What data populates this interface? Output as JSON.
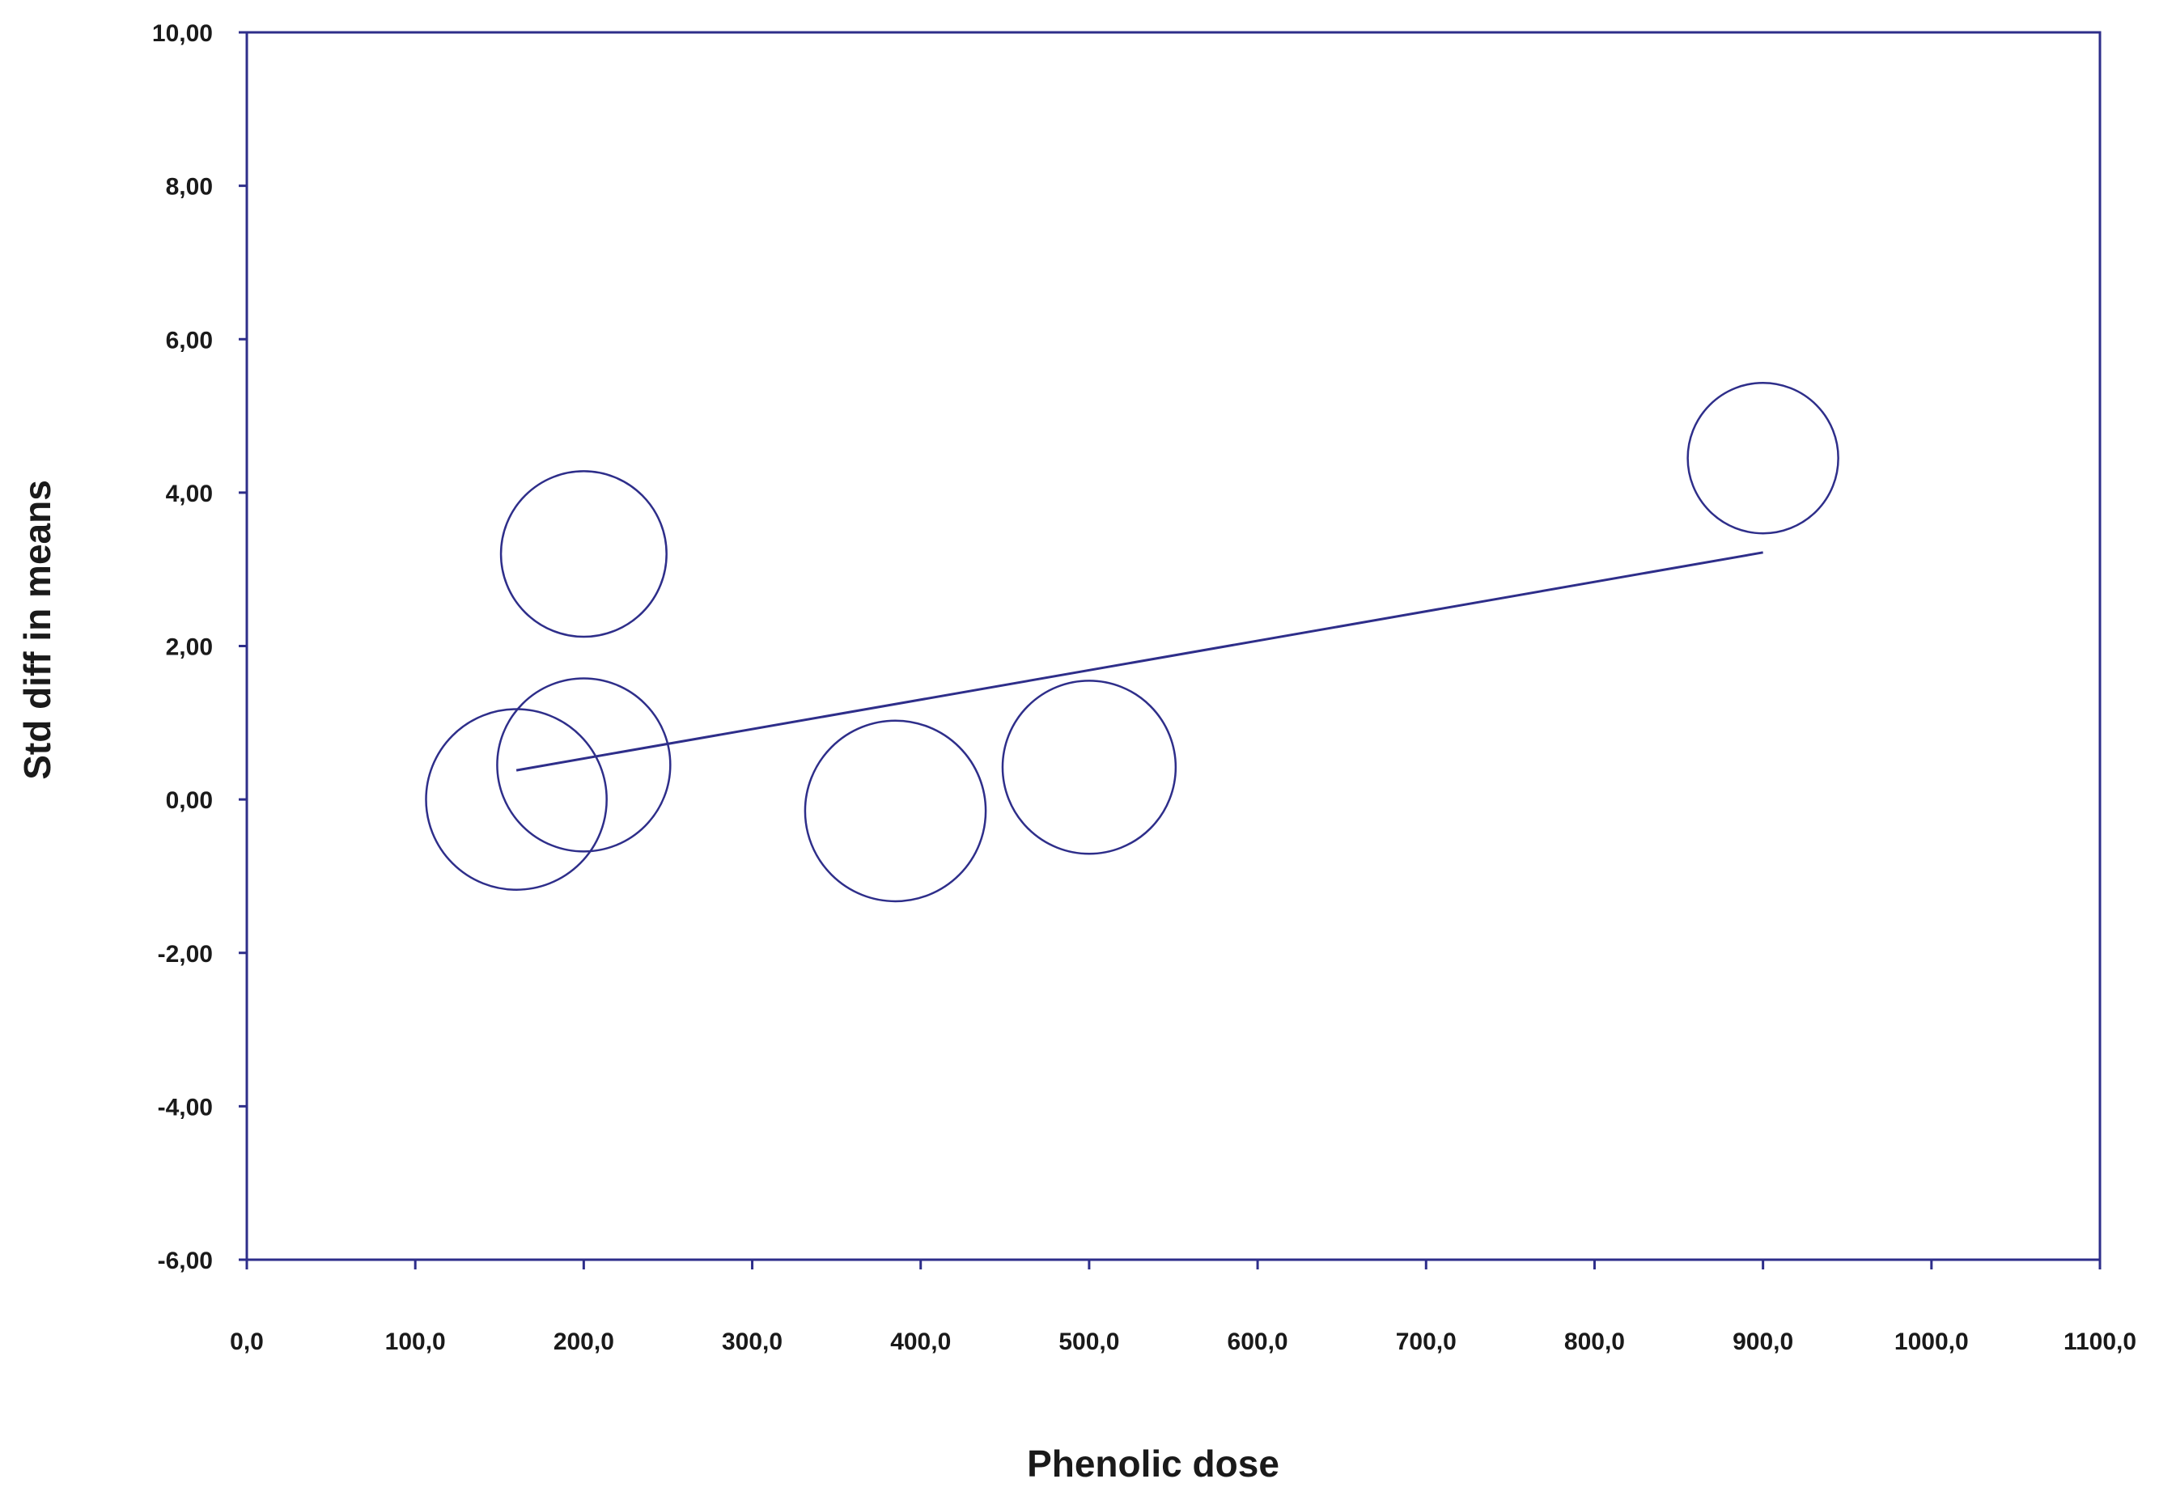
{
  "chart_data": {
    "type": "scatter",
    "title": "",
    "xlabel": "Phenolic dose",
    "ylabel": "Std diff in means",
    "xlim": [
      0,
      1100
    ],
    "ylim": [
      -6,
      10
    ],
    "x_ticks": [
      0,
      100,
      200,
      300,
      400,
      500,
      600,
      700,
      800,
      900,
      1000,
      1100
    ],
    "x_tick_labels": [
      "0,0",
      "100,0",
      "200,0",
      "300,0",
      "400,0",
      "500,0",
      "600,0",
      "700,0",
      "800,0",
      "900,0",
      "1000,0",
      "1100,0"
    ],
    "y_ticks": [
      -6,
      -4,
      -2,
      0,
      2,
      4,
      6,
      8,
      10
    ],
    "y_tick_labels": [
      "-6,00",
      "-4,00",
      "-2,00",
      "0,00",
      "2,00",
      "4,00",
      "6,00",
      "8,00",
      "10,00"
    ],
    "grid": false,
    "color": "#2e2e8a",
    "points": [
      {
        "x": 160,
        "y": 0.0,
        "weight": 1.2
      },
      {
        "x": 200,
        "y": 0.45,
        "weight": 1.15
      },
      {
        "x": 200,
        "y": 3.2,
        "weight": 1.1
      },
      {
        "x": 385,
        "y": -0.15,
        "weight": 1.2
      },
      {
        "x": 500,
        "y": 0.42,
        "weight": 1.15
      },
      {
        "x": 900,
        "y": 4.45,
        "weight": 1.0
      }
    ],
    "regression_line": {
      "x": [
        160,
        900
      ],
      "y": [
        0.38,
        3.22
      ]
    }
  }
}
